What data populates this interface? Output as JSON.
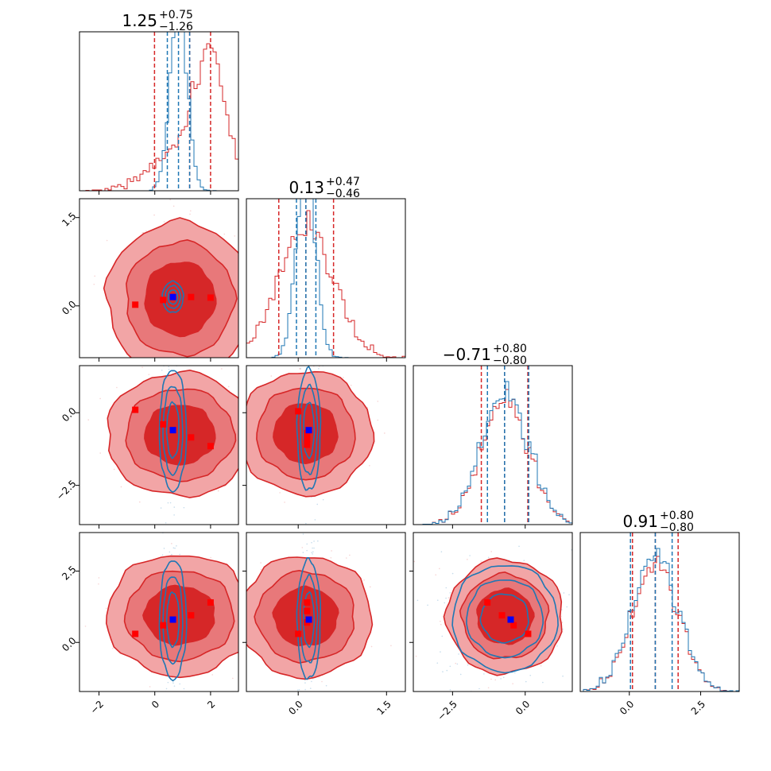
{
  "chart_data": {
    "type": "corner",
    "colors": {
      "red": "#d62728",
      "blue": "#1f77b4",
      "red_fill_light": "#f2a5a6",
      "red_fill_mid": "#e8787a",
      "red_fill_dark": "#d62728",
      "true_marker": "#0000ff",
      "sample_marker": "#ff0000"
    },
    "params": [
      {
        "title_main": "1.25",
        "title_plus": "+0.75",
        "title_minus": "−1.26",
        "range": [
          -2.7,
          3.0
        ],
        "ticks": [
          {
            "v": -2,
            "label": "−2"
          },
          {
            "v": 0,
            "label": "0"
          },
          {
            "v": 2,
            "label": "2"
          }
        ]
      },
      {
        "title_main": "0.13",
        "title_plus": "+0.47",
        "title_minus": "−0.46",
        "range": [
          -0.88,
          1.82
        ],
        "ticks": [
          {
            "v": 0.0,
            "label": "0.0"
          },
          {
            "v": 1.5,
            "label": "1.5"
          }
        ]
      },
      {
        "title_main": "−0.71",
        "title_plus": "+0.80",
        "title_minus": "−0.80",
        "range": [
          -3.85,
          1.62
        ],
        "ticks": [
          {
            "v": -2.5,
            "label": "−2.5"
          },
          {
            "v": 0.0,
            "label": "0.0"
          }
        ]
      },
      {
        "title_main": "0.91",
        "title_plus": "+0.80",
        "title_minus": "−0.80",
        "range": [
          -1.72,
          3.85
        ],
        "ticks": [
          {
            "v": 0.0,
            "label": "0.0"
          },
          {
            "v": 2.5,
            "label": "2.5"
          }
        ]
      }
    ],
    "hist1d": [
      {
        "red": {
          "mu": 1.25,
          "sd": 1.0,
          "skew": -1
        },
        "blue": {
          "mu": 0.85,
          "sd": 0.3
        },
        "red_quantiles": [
          -0.01,
          1.25,
          2.0
        ],
        "blue_quantiles": [
          0.45,
          0.85,
          1.25
        ]
      },
      {
        "red": {
          "mu": 0.13,
          "sd": 0.46
        },
        "blue": {
          "mu": 0.13,
          "sd": 0.16
        },
        "red_quantiles": [
          -0.33,
          0.13,
          0.6
        ],
        "blue_quantiles": [
          -0.03,
          0.13,
          0.3
        ]
      },
      {
        "red": {
          "mu": -0.71,
          "sd": 0.8
        },
        "blue": {
          "mu": -0.71,
          "sd": 0.8
        },
        "red_quantiles": [
          -1.51,
          -0.71,
          0.09
        ],
        "blue_quantiles": [
          -1.3,
          -0.71,
          0.12
        ]
      },
      {
        "red": {
          "mu": 0.91,
          "sd": 0.8
        },
        "blue": {
          "mu": 0.91,
          "sd": 0.8
        },
        "red_quantiles": [
          0.11,
          0.91,
          1.71
        ],
        "blue_quantiles": [
          0.04,
          0.91,
          1.5
        ]
      }
    ],
    "pairs": [
      {
        "row": 1,
        "col": 0,
        "red_center": [
          0.9,
          0.12
        ],
        "red_sd": [
          1.05,
          0.52
        ],
        "blue_center": [
          0.65,
          0.15
        ],
        "blue_sd": [
          0.17,
          0.12
        ],
        "truth": [
          0.65,
          0.15
        ],
        "samples": [
          [
            -0.7,
            0.02
          ],
          [
            0.3,
            0.1
          ],
          [
            1.3,
            0.15
          ],
          [
            2.0,
            0.14
          ]
        ]
      },
      {
        "row": 2,
        "col": 0,
        "red_center": [
          0.9,
          -0.75
        ],
        "red_sd": [
          1.05,
          0.85
        ],
        "blue_center": [
          0.65,
          -0.6
        ],
        "blue_sd": [
          0.22,
          0.95
        ],
        "truth": [
          0.65,
          -0.6
        ],
        "samples": [
          [
            -0.7,
            0.1
          ],
          [
            0.3,
            -0.4
          ],
          [
            1.3,
            -0.85
          ],
          [
            2.0,
            -1.15
          ]
        ]
      },
      {
        "row": 2,
        "col": 1,
        "red_center": [
          0.13,
          -0.7
        ],
        "red_sd": [
          0.45,
          0.85
        ],
        "blue_center": [
          0.18,
          -0.6
        ],
        "blue_sd": [
          0.09,
          0.95
        ],
        "truth": [
          0.18,
          -0.6
        ],
        "samples": [
          [
            0.0,
            0.05
          ],
          [
            0.15,
            -0.9
          ],
          [
            0.15,
            -1.1
          ],
          [
            0.15,
            -0.7
          ]
        ]
      },
      {
        "row": 3,
        "col": 0,
        "red_center": [
          0.9,
          0.95
        ],
        "red_sd": [
          1.05,
          0.85
        ],
        "blue_center": [
          0.65,
          0.8
        ],
        "blue_sd": [
          0.22,
          0.95
        ],
        "truth": [
          0.65,
          0.8
        ],
        "samples": [
          [
            -0.7,
            0.3
          ],
          [
            0.3,
            0.6
          ],
          [
            1.3,
            0.95
          ],
          [
            2.0,
            1.4
          ]
        ]
      },
      {
        "row": 3,
        "col": 1,
        "red_center": [
          0.13,
          0.9
        ],
        "red_sd": [
          0.45,
          0.85
        ],
        "blue_center": [
          0.18,
          0.8
        ],
        "blue_sd": [
          0.09,
          0.95
        ],
        "truth": [
          0.18,
          0.8
        ],
        "samples": [
          [
            0.0,
            0.3
          ],
          [
            0.15,
            1.4
          ],
          [
            0.15,
            1.1
          ],
          [
            0.15,
            0.7
          ]
        ]
      },
      {
        "row": 3,
        "col": 2,
        "red_center": [
          -0.7,
          0.9
        ],
        "red_sd": [
          0.8,
          0.8
        ],
        "blue_center": [
          -0.7,
          0.85
        ],
        "blue_sd": [
          0.82,
          0.85
        ],
        "truth": [
          -0.5,
          0.8
        ],
        "samples": [
          [
            -1.3,
            1.4
          ],
          [
            -0.8,
            0.95
          ],
          [
            -0.4,
            0.6
          ],
          [
            0.1,
            0.3
          ]
        ]
      }
    ]
  }
}
